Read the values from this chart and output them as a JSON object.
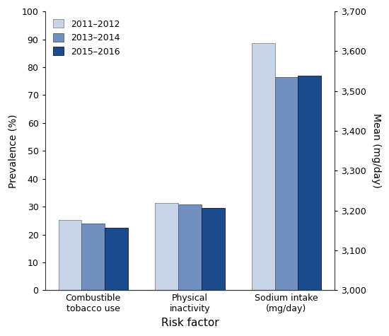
{
  "categories": [
    "Combustible\ntobacco use",
    "Physical\ninactivity",
    "Sodium intake\n(mg/day)"
  ],
  "series": {
    "2011–2012": [
      25.3,
      31.2,
      88.6
    ],
    "2013–2014": [
      24.0,
      30.7,
      76.4
    ],
    "2015–2016": [
      22.5,
      29.5,
      77.0
    ]
  },
  "colors": {
    "2011–2012": "#c8d4e8",
    "2013–2014": "#7090c0",
    "2015–2016": "#1a4b8c"
  },
  "edge_colors": {
    "2011–2012": "#888888",
    "2013–2014": "#555577",
    "2015–2016": "#111133"
  },
  "ylim_left": [
    0,
    100
  ],
  "ylim_right": [
    3000,
    3700
  ],
  "yticks_left": [
    0,
    10,
    20,
    30,
    40,
    50,
    60,
    70,
    80,
    90,
    100
  ],
  "yticks_right": [
    3000,
    3100,
    3200,
    3300,
    3400,
    3500,
    3600,
    3700
  ],
  "ylabel_left": "Prevalence (%)",
  "ylabel_right": "Mean (mg/day)",
  "xlabel": "Risk factor",
  "bar_width": 0.24,
  "figsize": [
    5.5,
    4.75
  ],
  "dpi": 100
}
